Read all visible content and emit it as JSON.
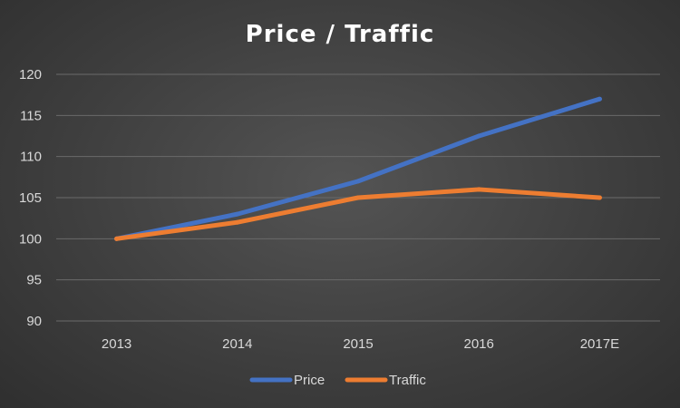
{
  "chart_data": {
    "type": "line",
    "title": "Price / Traffic",
    "xlabel": "",
    "ylabel": "",
    "categories": [
      "2013",
      "2014",
      "2015",
      "2016",
      "2017E"
    ],
    "series": [
      {
        "name": "Price",
        "values": [
          100,
          103,
          107,
          112.5,
          117
        ],
        "color": "#4472c4"
      },
      {
        "name": "Traffic",
        "values": [
          100,
          102,
          105,
          106,
          105
        ],
        "color": "#ed7d31"
      }
    ],
    "ylim": [
      90,
      120
    ],
    "yticks": [
      "90",
      "95",
      "100",
      "105",
      "110",
      "115",
      "120"
    ],
    "grid": true,
    "legend_position": "bottom"
  }
}
